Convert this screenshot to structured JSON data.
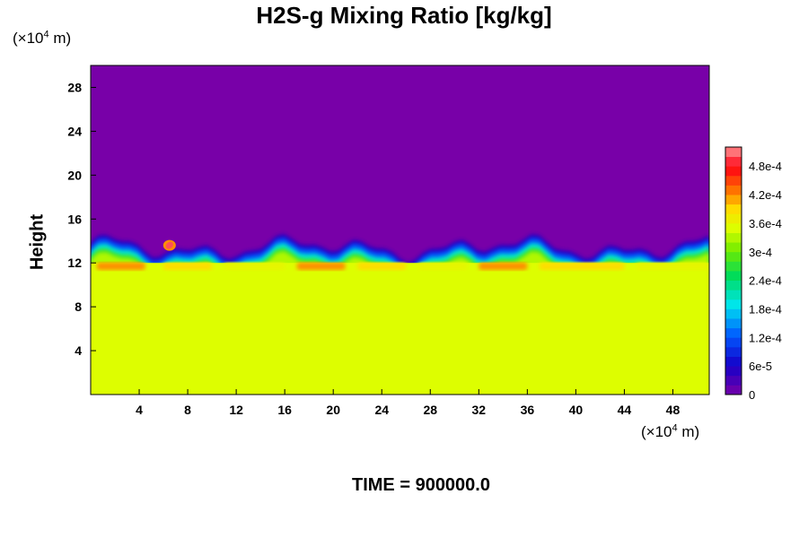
{
  "title": "H2S-g Mixing Ratio [kg/kg]",
  "y_unit": {
    "prefix": "(×10",
    "exp": "4",
    "suffix": " m)"
  },
  "x_unit": {
    "prefix": "(×10",
    "exp": "4",
    "suffix": " m)"
  },
  "time_label": "TIME = 900000.0",
  "chart_data": {
    "type": "heatmap",
    "title": "H2S-g Mixing Ratio [kg/kg]",
    "xlabel": "",
    "ylabel": "Height",
    "x_unit": "×10^4 m",
    "y_unit": "×10^4 m",
    "xlim": [
      0,
      51
    ],
    "ylim": [
      0,
      30
    ],
    "x_ticks": [
      4,
      8,
      12,
      16,
      20,
      24,
      28,
      32,
      36,
      40,
      44,
      48
    ],
    "y_ticks": [
      4,
      8,
      12,
      16,
      20,
      24,
      28
    ],
    "colorbar": {
      "min": 0,
      "max": 0.00052,
      "tick_values": [
        0,
        6e-05,
        0.00012,
        0.00018,
        0.00024,
        0.0003,
        0.00036,
        0.00042,
        0.00048
      ],
      "tick_labels": [
        "0",
        "6e-5",
        "1.2e-4",
        "1.8e-4",
        "2.4e-4",
        "3e-4",
        "3.6e-4",
        "4.2e-4",
        "4.8e-4"
      ]
    },
    "field_summary": {
      "lower_layer_value": 0.00035,
      "lower_layer_top_height": 12,
      "upper_layer_value": 0,
      "transition_top_height": 15,
      "enhanced_band_height": 11.7,
      "enhanced_band_value": 0.00042,
      "hotspot_x": 6.5,
      "hotspot_y": 13.6,
      "hotspot_value": 0.0005
    },
    "grid": false
  },
  "colors": {
    "low": "#7800a8",
    "plateau": "#dcff00",
    "high": "#ff8080"
  }
}
